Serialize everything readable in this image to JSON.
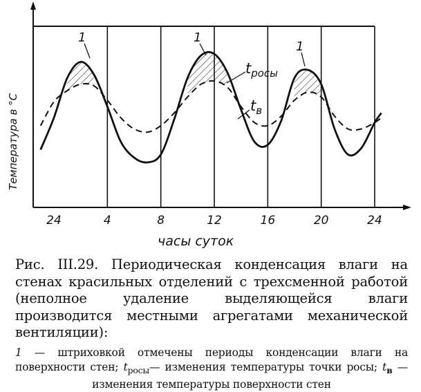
{
  "figure": {
    "ylabel": "Температура в °C",
    "xlabel": "часы суток",
    "label_curve1": "1",
    "label_t_rosy": "t",
    "label_t_rosy_sub": "росы",
    "label_t_v": "t",
    "label_t_v_sub": "в",
    "x_ticks": [
      "24",
      "4",
      "8",
      "12",
      "16",
      "20",
      "24"
    ]
  },
  "caption": {
    "title": "Рис. III.29. Периодическая конденсация влаги на стенах красильных отделений с трехсменной работой (неполное удаление выделяющейся влаги производится местными агрегатами механической вентиляции):",
    "legend_1_num": "1",
    "legend_1_text": " — штриховкой отмечены периоды конденсации влаги на поверхности стен; ",
    "legend_2_sym": "t",
    "legend_2_sub": "росы",
    "legend_2_text": "— изменения температуры точки росы; ",
    "legend_3_sym": "t",
    "legend_3_sub": "в",
    "legend_3_text": " — изменения температуры поверхности стен"
  },
  "chart_data": {
    "type": "line",
    "title": "",
    "xlabel": "часы суток",
    "ylabel": "Температура в °C",
    "x_tick_labels": [
      "24",
      "4",
      "8",
      "12",
      "16",
      "20",
      "24"
    ],
    "x_tick_hours": [
      0,
      4,
      8,
      12,
      16,
      20,
      24
    ],
    "xlim": [
      0,
      24
    ],
    "y_values_relative": true,
    "ylim": [
      0,
      1
    ],
    "grid": "vertical",
    "series": [
      {
        "name": "t_в",
        "style": "solid",
        "x": [
          -1.0,
          0,
          1,
          2,
          3,
          4,
          5,
          6,
          7,
          8,
          9,
          10,
          11,
          12,
          13,
          14,
          15,
          16,
          17,
          18,
          19,
          20,
          21,
          22,
          23,
          24,
          24.5
        ],
        "y": [
          0.25,
          0.45,
          0.7,
          0.8,
          0.72,
          0.52,
          0.3,
          0.2,
          0.17,
          0.22,
          0.44,
          0.7,
          0.84,
          0.85,
          0.73,
          0.5,
          0.3,
          0.28,
          0.43,
          0.7,
          0.75,
          0.66,
          0.38,
          0.22,
          0.26,
          0.42,
          0.48
        ]
      },
      {
        "name": "t_росы",
        "style": "dashed",
        "x": [
          -1.0,
          0,
          1,
          2,
          3,
          4,
          5,
          6,
          7,
          8,
          9,
          10,
          11,
          12,
          13,
          14,
          15,
          16,
          17,
          18,
          19,
          20,
          21,
          22,
          23,
          24,
          24.5
        ],
        "y": [
          0.4,
          0.55,
          0.62,
          0.66,
          0.65,
          0.56,
          0.45,
          0.38,
          0.36,
          0.4,
          0.48,
          0.58,
          0.66,
          0.68,
          0.64,
          0.52,
          0.42,
          0.4,
          0.46,
          0.56,
          0.61,
          0.58,
          0.46,
          0.38,
          0.38,
          0.42,
          0.45
        ]
      }
    ],
    "annotations": [
      "1",
      "1",
      "1"
    ]
  }
}
